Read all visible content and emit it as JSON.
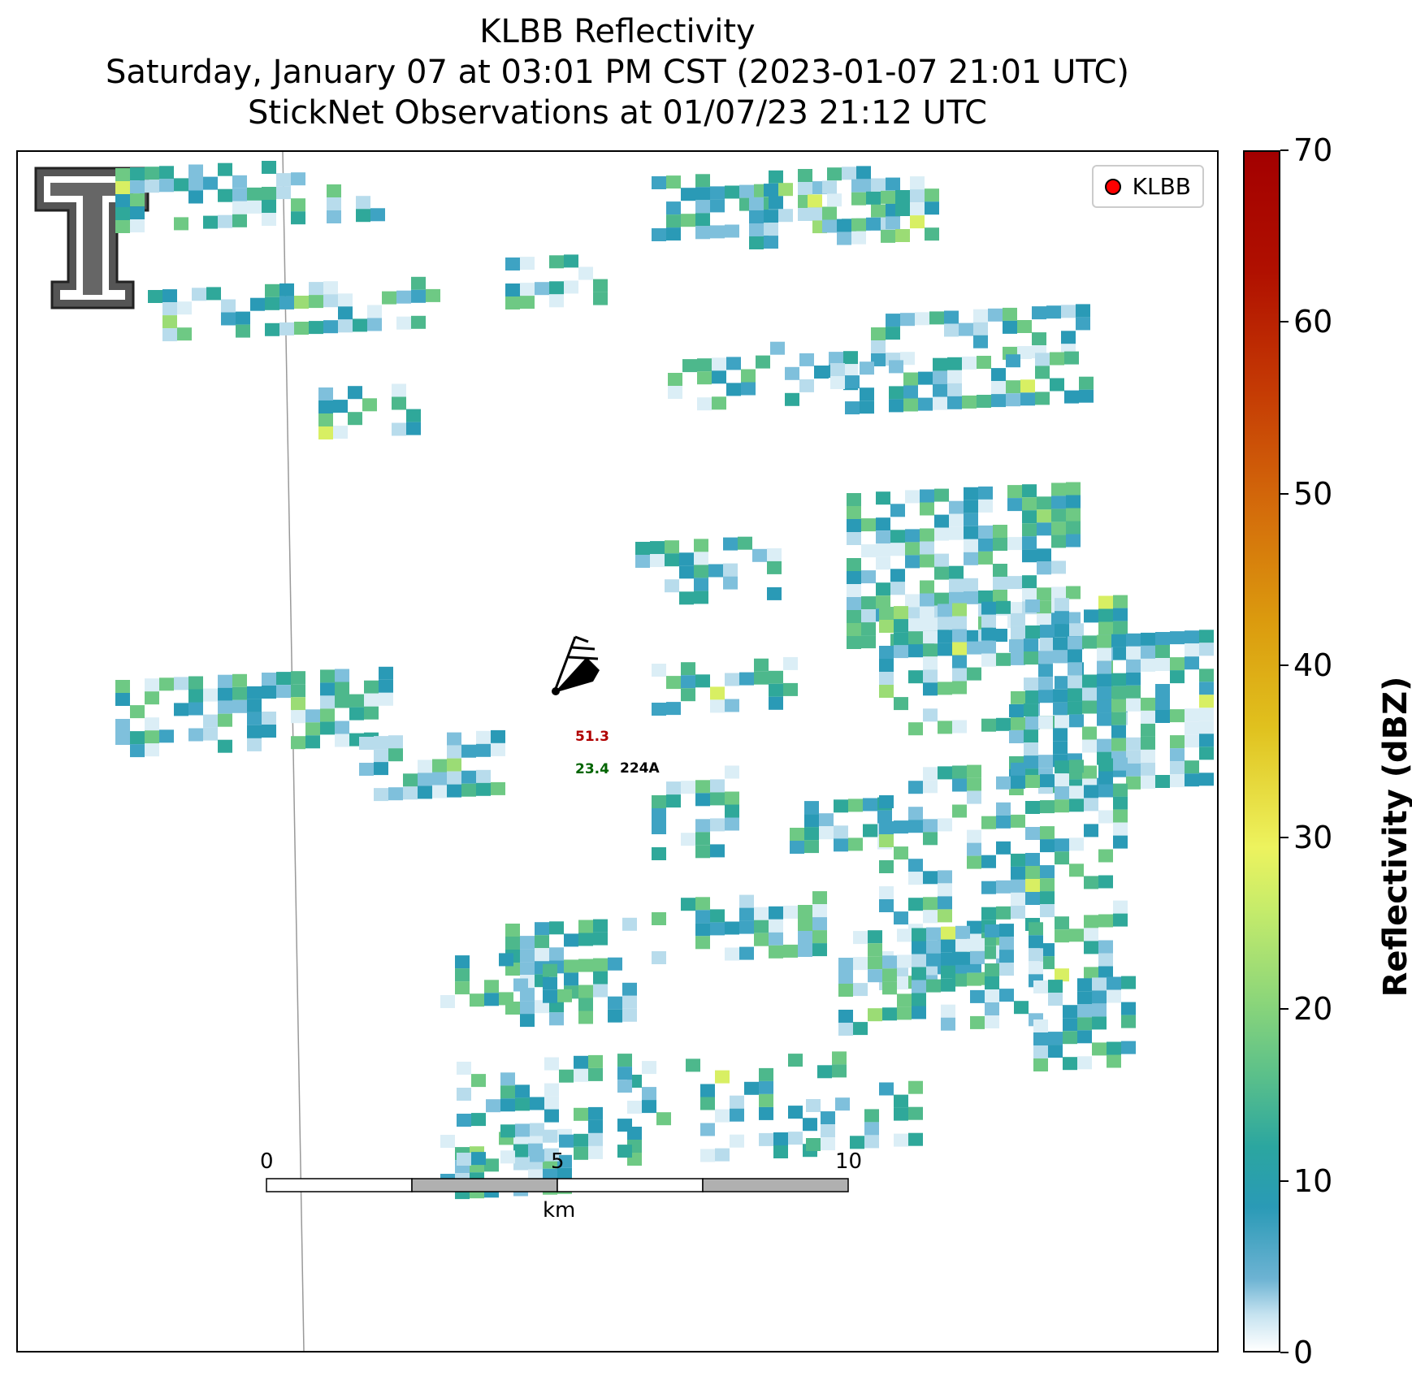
{
  "title": {
    "line1": "KLBB Reflectivity",
    "line2": "Saturday, January 07 at 03:01 PM CST (2023-01-07 21:01 UTC)",
    "line3": "StickNet Observations at 01/07/23 21:12 UTC"
  },
  "legend": {
    "label": "KLBB",
    "marker_color": "#ff0000"
  },
  "station": {
    "id": "224A",
    "temperature": "51.3",
    "dewpoint": "23.4"
  },
  "scale_bar": {
    "ticks": [
      "0",
      "5",
      "10"
    ],
    "unit": "km"
  },
  "colorbar": {
    "label": "Reflectivity (dBZ)",
    "ticks": [
      "0",
      "10",
      "20",
      "30",
      "40",
      "50",
      "60",
      "70"
    ],
    "min": 0,
    "max": 70
  },
  "colors": {
    "low": "#c6e3f0",
    "teal": "#2a9ab6",
    "green": "#5bc08a",
    "yellow": "#edf35e",
    "high": "#a30000"
  }
}
